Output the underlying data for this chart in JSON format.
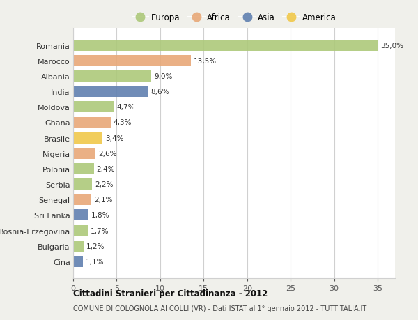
{
  "countries": [
    "Romania",
    "Marocco",
    "Albania",
    "India",
    "Moldova",
    "Ghana",
    "Brasile",
    "Nigeria",
    "Polonia",
    "Serbia",
    "Senegal",
    "Sri Lanka",
    "Bosnia-Erzegovina",
    "Bulgaria",
    "Cina"
  ],
  "values": [
    35.0,
    13.5,
    9.0,
    8.6,
    4.7,
    4.3,
    3.4,
    2.6,
    2.4,
    2.2,
    2.1,
    1.8,
    1.7,
    1.2,
    1.1
  ],
  "labels": [
    "35,0%",
    "13,5%",
    "9,0%",
    "8,6%",
    "4,7%",
    "4,3%",
    "3,4%",
    "2,6%",
    "2,4%",
    "2,2%",
    "2,1%",
    "1,8%",
    "1,7%",
    "1,2%",
    "1,1%"
  ],
  "continents": [
    "Europa",
    "Africa",
    "Europa",
    "Asia",
    "Europa",
    "Africa",
    "America",
    "Africa",
    "Europa",
    "Europa",
    "Africa",
    "Asia",
    "Europa",
    "Europa",
    "Asia"
  ],
  "colors": {
    "Europa": "#adc97a",
    "Africa": "#e8a878",
    "Asia": "#6080b0",
    "America": "#f0c84a"
  },
  "legend_order": [
    "Europa",
    "Africa",
    "Asia",
    "America"
  ],
  "title1": "Cittadini Stranieri per Cittadinanza - 2012",
  "title2": "COMUNE DI COLOGNOLA AI COLLI (VR) - Dati ISTAT al 1° gennaio 2012 - TUTTITALIA.IT",
  "xlim": [
    0,
    37
  ],
  "xticks": [
    0,
    5,
    10,
    15,
    20,
    25,
    30,
    35
  ],
  "bg_color": "#f0f0eb",
  "plot_bg_color": "#ffffff",
  "grid_color": "#d0d0d0"
}
